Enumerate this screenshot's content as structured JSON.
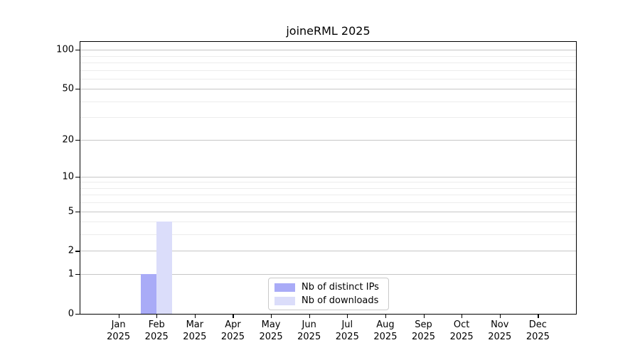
{
  "chart_data": {
    "type": "bar",
    "title": "joineRML 2025",
    "categories": [
      "Jan",
      "Feb",
      "Mar",
      "Apr",
      "May",
      "Jun",
      "Jul",
      "Aug",
      "Sep",
      "Oct",
      "Nov",
      "Dec"
    ],
    "x_year_label": "2025",
    "series": [
      {
        "name": "Nb of distinct IPs",
        "color": "#a9abf7",
        "values": [
          0,
          1,
          0,
          0,
          0,
          0,
          0,
          0,
          0,
          0,
          0,
          0
        ]
      },
      {
        "name": "Nb of downloads",
        "color": "#dbddfa",
        "values": [
          0,
          4,
          0,
          0,
          0,
          0,
          0,
          0,
          0,
          0,
          0,
          0
        ]
      }
    ],
    "yscale": "log1p",
    "ylim": [
      0,
      115
    ],
    "yticks": [
      0,
      1,
      2,
      5,
      10,
      20,
      50,
      100
    ],
    "minor_gridlines": [
      3,
      4,
      6,
      7,
      8,
      9,
      30,
      40,
      60,
      70,
      80,
      90
    ],
    "grid": true,
    "legend_position": "lower center"
  },
  "colors": {
    "major_grid": "#c6c6c6",
    "minor_grid": "#ececec",
    "axis": "#000000",
    "background": "#ffffff"
  }
}
